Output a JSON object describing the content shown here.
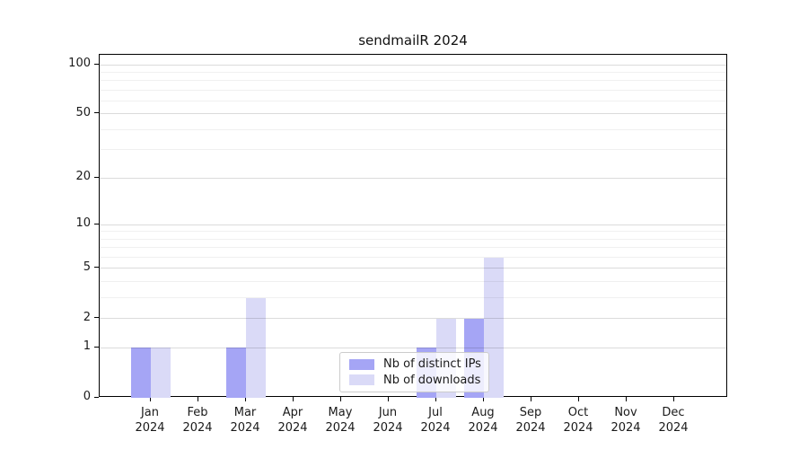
{
  "chart_data": {
    "type": "bar",
    "title": "sendmailR 2024",
    "x_months": [
      "Jan",
      "Feb",
      "Mar",
      "Apr",
      "May",
      "Jun",
      "Jul",
      "Aug",
      "Sep",
      "Oct",
      "Nov",
      "Dec"
    ],
    "x_year": "2024",
    "y_scale": "log1p",
    "y_tick_values": [
      0,
      1,
      2,
      5,
      10,
      20,
      50,
      100
    ],
    "y_major_grid_values": [
      1,
      2,
      5,
      10,
      20,
      50,
      100
    ],
    "y_minor_grid_values": [
      3,
      4,
      6,
      7,
      8,
      9,
      30,
      40,
      60,
      70,
      80,
      90
    ],
    "ylim": [
      0,
      115
    ],
    "grid": "horizontal",
    "legend_position": "bottom-center",
    "series": [
      {
        "name": "Nb of distinct IPs",
        "color": "#a5a5f5",
        "values": [
          1,
          0,
          1,
          0,
          0,
          0,
          1,
          2,
          0,
          0,
          0,
          0
        ]
      },
      {
        "name": "Nb of downloads",
        "color": "#dadaf7",
        "values": [
          1,
          0,
          3,
          0,
          0,
          0,
          2,
          6,
          0,
          0,
          0,
          0
        ]
      }
    ],
    "colors": {
      "axis": "#000000",
      "text": "#1a1a1a",
      "grid_major": "rgba(0,0,0,0.14)",
      "grid_minor": "rgba(0,0,0,0.06)",
      "legend_border": "#cccccc",
      "legend_bg": "rgba(255,255,255,0.8)"
    }
  }
}
